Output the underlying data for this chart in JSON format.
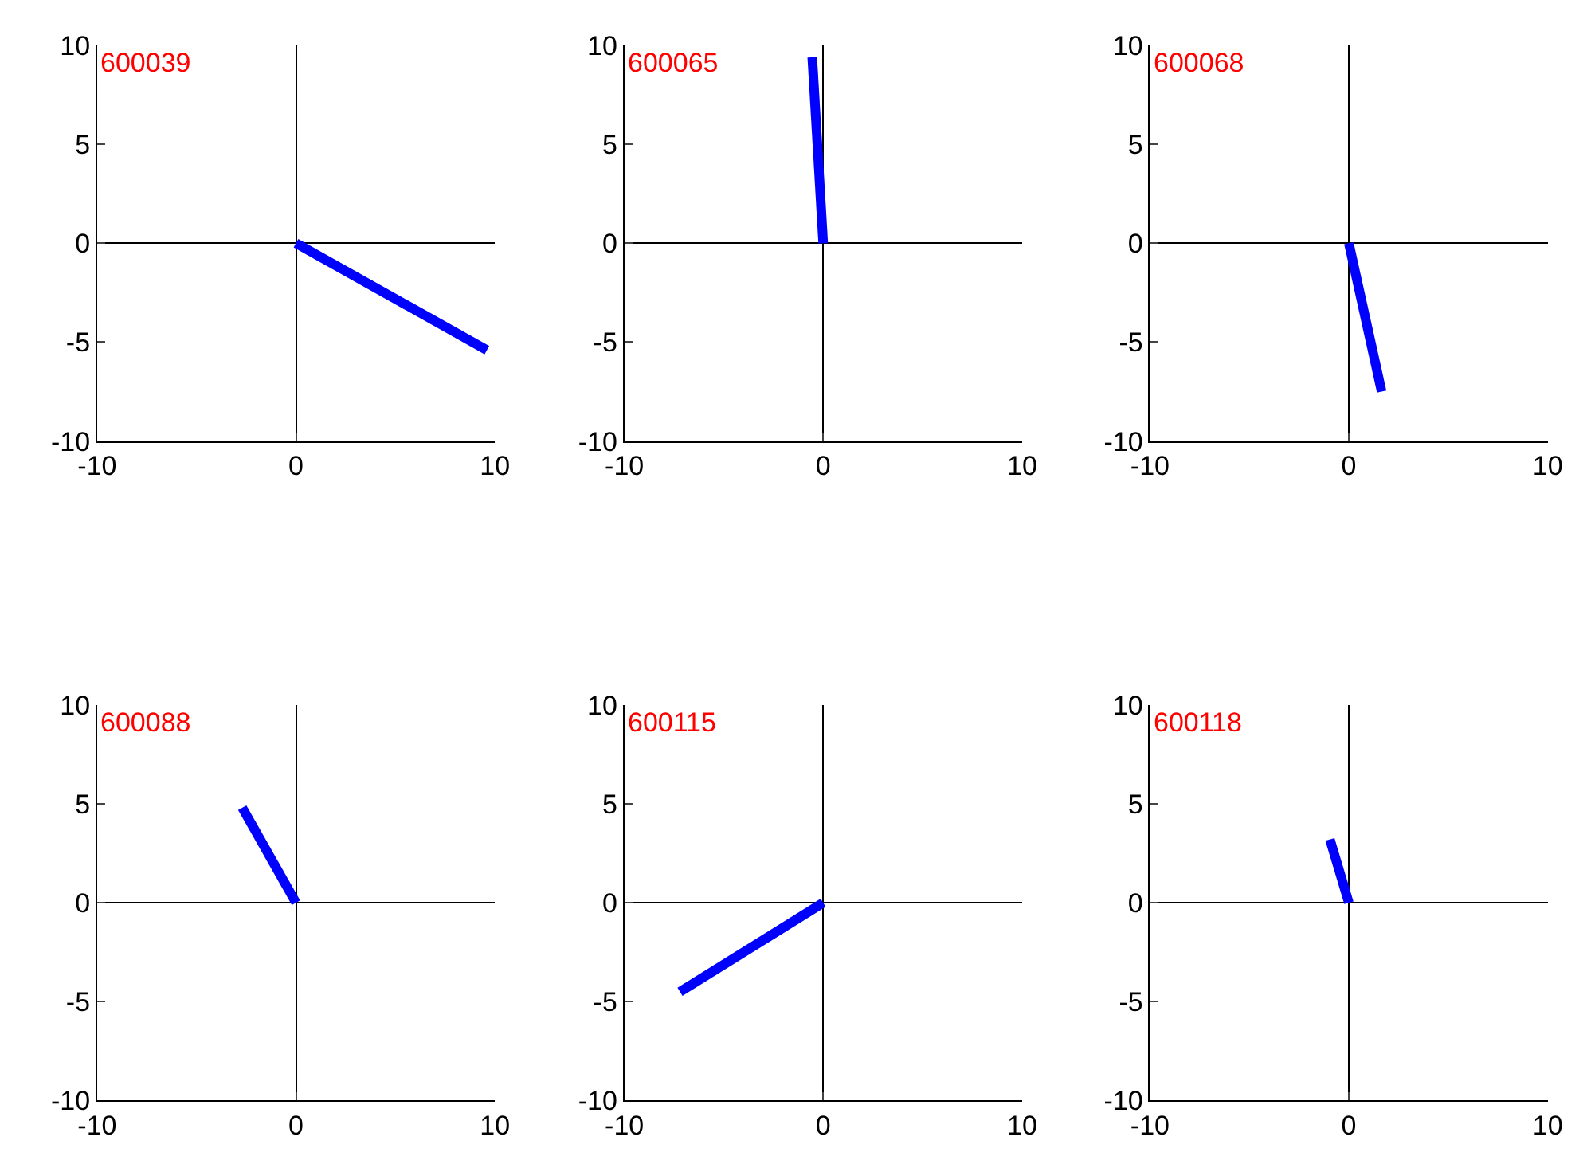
{
  "chart_data": [
    {
      "type": "line",
      "x": [
        0,
        9.6
      ],
      "series": [
        {
          "color": "#0000ff",
          "values": [
            0,
            -5.4
          ]
        }
      ],
      "xlim": [
        -10,
        10
      ],
      "ylim": [
        -10,
        10
      ],
      "xticks": [
        -10,
        0,
        10
      ],
      "yticks": [
        -10,
        -5,
        0,
        5,
        10
      ],
      "annotations": [
        "600039"
      ],
      "marker": "none",
      "line_style": "solid"
    },
    {
      "type": "line",
      "x": [
        0,
        -0.55
      ],
      "series": [
        {
          "color": "#0000ff",
          "values": [
            0,
            9.4
          ]
        }
      ],
      "xlim": [
        -10,
        10
      ],
      "ylim": [
        -10,
        10
      ],
      "xticks": [
        -10,
        0,
        10
      ],
      "yticks": [
        -10,
        -5,
        0,
        5,
        10
      ],
      "annotations": [
        "600065"
      ],
      "marker": "none",
      "line_style": "solid"
    },
    {
      "type": "line",
      "x": [
        0,
        1.65
      ],
      "series": [
        {
          "color": "#0000ff",
          "values": [
            0,
            -7.5
          ]
        }
      ],
      "xlim": [
        -10,
        10
      ],
      "ylim": [
        -10,
        10
      ],
      "xticks": [
        -10,
        0,
        10
      ],
      "yticks": [
        -10,
        -5,
        0,
        5,
        10
      ],
      "annotations": [
        "600068"
      ],
      "marker": "none",
      "line_style": "solid"
    },
    {
      "type": "line",
      "x": [
        0,
        -2.7
      ],
      "series": [
        {
          "color": "#0000ff",
          "values": [
            0,
            4.8
          ]
        }
      ],
      "xlim": [
        -10,
        10
      ],
      "ylim": [
        -10,
        10
      ],
      "xticks": [
        -10,
        0,
        10
      ],
      "yticks": [
        -10,
        -5,
        0,
        5,
        10
      ],
      "annotations": [
        "600088"
      ],
      "marker": "none",
      "line_style": "solid"
    },
    {
      "type": "line",
      "x": [
        0,
        -7.2
      ],
      "series": [
        {
          "color": "#0000ff",
          "values": [
            0,
            -4.5
          ]
        }
      ],
      "xlim": [
        -10,
        10
      ],
      "ylim": [
        -10,
        10
      ],
      "xticks": [
        -10,
        0,
        10
      ],
      "yticks": [
        -10,
        -5,
        0,
        5,
        10
      ],
      "annotations": [
        "600115"
      ],
      "marker": "none",
      "line_style": "solid"
    },
    {
      "type": "line",
      "x": [
        0,
        -0.95
      ],
      "series": [
        {
          "color": "#0000ff",
          "values": [
            0,
            3.2
          ]
        }
      ],
      "xlim": [
        -10,
        10
      ],
      "ylim": [
        -10,
        10
      ],
      "xticks": [
        -10,
        0,
        10
      ],
      "yticks": [
        -10,
        -5,
        0,
        5,
        10
      ],
      "annotations": [
        "600118"
      ],
      "marker": "none",
      "line_style": "solid"
    }
  ]
}
